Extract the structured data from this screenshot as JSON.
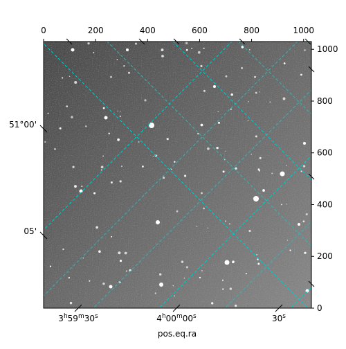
{
  "chart_data": {
    "type": "image",
    "title": "",
    "image_description": "Grayscale star field with celestial coordinate grid (cyan dashed lines)",
    "pixel_axes": {
      "x_ticks": [
        0,
        200,
        400,
        600,
        800,
        1000
      ],
      "y_ticks": [
        0,
        200,
        400,
        600,
        800,
        1000
      ],
      "xlim": [
        0,
        1030
      ],
      "ylim": [
        0,
        1030
      ]
    },
    "world_axes": {
      "xlabel": "pos.eq.ra",
      "ylabel": "",
      "ra_ticks": [
        {
          "h": "3",
          "m": "59",
          "s": "30"
        },
        {
          "h": "4",
          "m": "00",
          "s": "00"
        },
        {
          "s": "30"
        }
      ],
      "dec_ticks": [
        "51°00'",
        "05'"
      ]
    },
    "grid_color": "#00cccc",
    "grid_style": "dashed"
  },
  "labels": {
    "xlabel": "pos.eq.ra"
  }
}
